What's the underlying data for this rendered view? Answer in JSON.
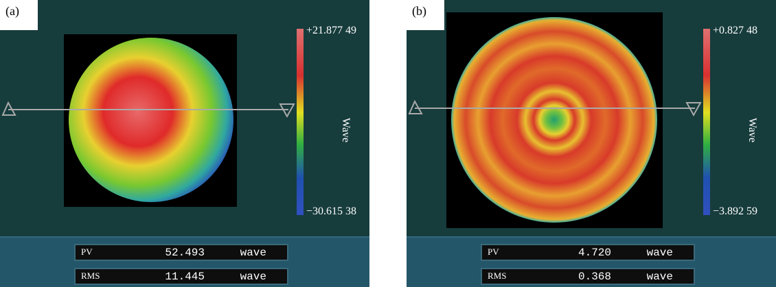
{
  "panels": [
    {
      "label": "(a)",
      "scale_max": "+21.877 49",
      "scale_min": "−30.615 38",
      "axis_label": "Wave",
      "rows": [
        {
          "label": "PV",
          "value": "52.493",
          "unit": "wave"
        },
        {
          "label": "RMS",
          "value": "11.445",
          "unit": "wave"
        }
      ]
    },
    {
      "label": "(b)",
      "scale_max": "+0.827 48",
      "scale_min": "−3.892 59",
      "axis_label": "Wave",
      "rows": [
        {
          "label": "PV",
          "value": "4.720",
          "unit": "wave"
        },
        {
          "label": "RMS",
          "value": "0.368",
          "unit": "wave"
        }
      ]
    }
  ]
}
